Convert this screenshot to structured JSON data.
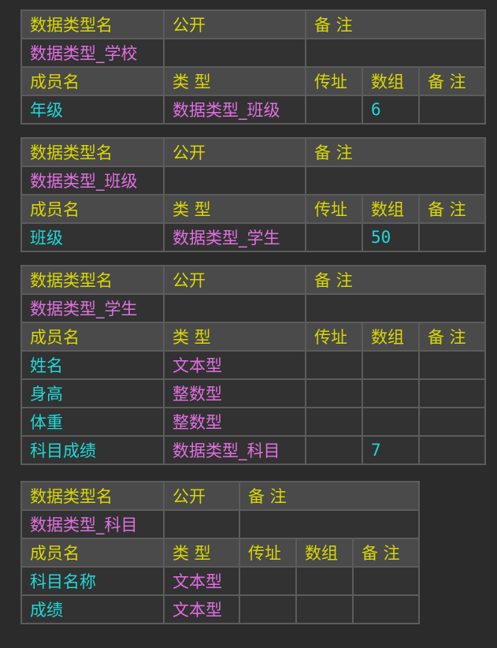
{
  "headers": {
    "type_name": "数据类型名",
    "public": "公开",
    "remark": "备 注",
    "member_name": "成员名",
    "type": "类 型",
    "by_ref": "传址",
    "array": "数组"
  },
  "colors": {
    "header_text": "#d8d800",
    "type_text": "#e070e0",
    "member_text": "#20d8d8",
    "header_bg": "#4a4a4a",
    "cell_bg": "#323232",
    "border": "#5c5c5c"
  },
  "tables": [
    {
      "name": "数据类型_学校",
      "members": [
        {
          "name": "年级",
          "type": "数据类型_班级",
          "array": "6"
        }
      ]
    },
    {
      "name": "数据类型_班级",
      "members": [
        {
          "name": "班级",
          "type": "数据类型_学生",
          "array": "50"
        }
      ]
    },
    {
      "name": "数据类型_学生",
      "members": [
        {
          "name": "姓名",
          "type": "文本型",
          "array": ""
        },
        {
          "name": "身高",
          "type": "整数型",
          "array": ""
        },
        {
          "name": "体重",
          "type": "整数型",
          "array": ""
        },
        {
          "name": "科目成绩",
          "type": "数据类型_科目",
          "array": "7"
        }
      ]
    },
    {
      "name": "数据类型_科目",
      "members": [
        {
          "name": "科目名称",
          "type": "文本型",
          "array": ""
        },
        {
          "name": "成绩",
          "type": "文本型",
          "array": ""
        }
      ]
    }
  ]
}
